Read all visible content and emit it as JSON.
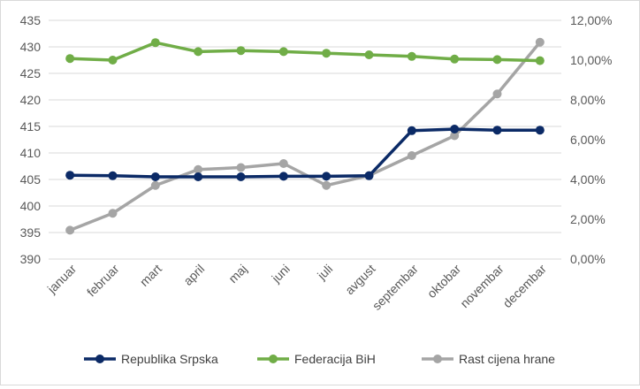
{
  "chart_data": {
    "type": "line",
    "title": "",
    "categories": [
      "januar",
      "februar",
      "mart",
      "april",
      "maj",
      "juni",
      "juli",
      "avgust",
      "septembar",
      "oktobar",
      "novembar",
      "decembar"
    ],
    "left_axis": {
      "min": 390,
      "max": 435,
      "step": 5,
      "ticks": [
        "390",
        "395",
        "400",
        "405",
        "410",
        "415",
        "420",
        "425",
        "430",
        "435"
      ]
    },
    "right_axis": {
      "min": 0,
      "max": 12,
      "step": 2,
      "ticks": [
        "0,00%",
        "2,00%",
        "4,00%",
        "6,00%",
        "8,00%",
        "10,00%",
        "12,00%"
      ]
    },
    "grid": true,
    "legend_position": "bottom",
    "series": [
      {
        "name": "Republika Srpska",
        "axis": "left",
        "color": "#0b2a66",
        "values": [
          405.8,
          405.7,
          405.5,
          405.5,
          405.5,
          405.6,
          405.6,
          405.7,
          414.2,
          414.5,
          414.3,
          414.3
        ]
      },
      {
        "name": "Federacija BiH",
        "axis": "left",
        "color": "#70ad47",
        "values": [
          427.8,
          427.5,
          430.8,
          429.1,
          429.3,
          429.1,
          428.8,
          428.5,
          428.2,
          427.7,
          427.6,
          427.4
        ]
      },
      {
        "name": "Rast cijena hrane",
        "axis": "right",
        "color": "#a5a5a5",
        "values": [
          1.45,
          2.3,
          3.7,
          4.5,
          4.6,
          4.8,
          3.7,
          4.2,
          5.2,
          6.2,
          8.3,
          10.9
        ]
      }
    ]
  }
}
